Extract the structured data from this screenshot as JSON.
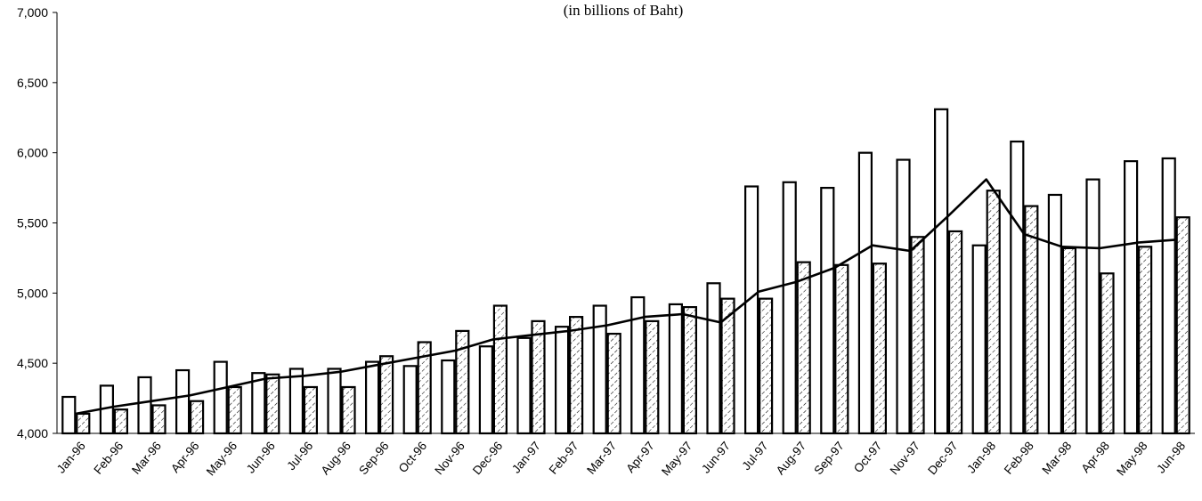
{
  "chart_data": {
    "type": "bar",
    "subtitle": "(in billions of Baht)",
    "categories": [
      "Jan-96",
      "Feb-96",
      "Mar-96",
      "Apr-96",
      "May-96",
      "Jun-96",
      "Jul-96",
      "Aug-96",
      "Sep-96",
      "Oct-96",
      "Nov-96",
      "Dec-96",
      "Jan-97",
      "Feb-97",
      "Mar-97",
      "Apr-97",
      "May-97",
      "Jun-97",
      "Jul-97",
      "Aug-97",
      "Sep-97",
      "Oct-97",
      "Nov-97",
      "Dec-97",
      "Jan-98",
      "Feb-98",
      "Mar-98",
      "Apr-98",
      "May-98",
      "Jun-98"
    ],
    "y_tick_labels": [
      "4,000",
      "4,500",
      "5,000",
      "5,500",
      "6,000",
      "6,500",
      "7,000"
    ],
    "ylim": [
      4000,
      7000
    ],
    "grid": false,
    "legend": "none",
    "series": [
      {
        "style": "open bars",
        "values": [
          4260,
          4340,
          4400,
          4450,
          4510,
          4430,
          4460,
          4460,
          4510,
          4480,
          4520,
          4620,
          4680,
          4760,
          4910,
          4970,
          4920,
          5070,
          5760,
          5790,
          5750,
          6000,
          5950,
          6310,
          5340,
          6080,
          5700,
          5810,
          5940,
          5960
        ]
      },
      {
        "style": "hatched bars",
        "values": [
          4140,
          4170,
          4200,
          4230,
          4330,
          4420,
          4330,
          4330,
          4550,
          4650,
          4730,
          4910,
          4800,
          4830,
          4710,
          4800,
          4900,
          4960,
          4960,
          5220,
          5200,
          5210,
          5400,
          5440,
          5730,
          5620,
          5320,
          5140,
          5330,
          5540
        ]
      },
      {
        "style": "line",
        "values": [
          4140,
          4190,
          4230,
          4270,
          4330,
          4390,
          4410,
          4440,
          4490,
          4540,
          4590,
          4670,
          4700,
          4730,
          4770,
          4830,
          4850,
          4790,
          5010,
          5080,
          5180,
          5340,
          5300,
          5550,
          5810,
          5420,
          5330,
          5320,
          5360,
          5380
        ]
      }
    ],
    "colors": {
      "bars": "#ffffff",
      "stroke": "#000000",
      "hatch": "#000000"
    }
  }
}
